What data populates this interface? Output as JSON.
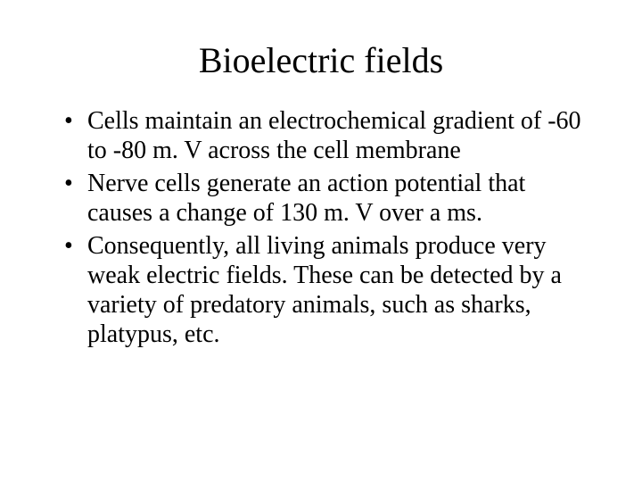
{
  "slide": {
    "title": "Bioelectric fields",
    "bullets": [
      "Cells maintain an electrochemical gradient of -60 to -80 m. V across the cell membrane",
      "Nerve cells generate an action potential that causes a change of 130 m. V over a ms.",
      "Consequently, all living animals produce very weak electric fields.  These can be detected by a variety of predatory animals, such as sharks, platypus, etc."
    ],
    "colors": {
      "background": "#ffffff",
      "text": "#000000"
    },
    "typography": {
      "title_fontsize_pt": 40,
      "body_fontsize_pt": 28,
      "font_family": "Times New Roman"
    }
  }
}
